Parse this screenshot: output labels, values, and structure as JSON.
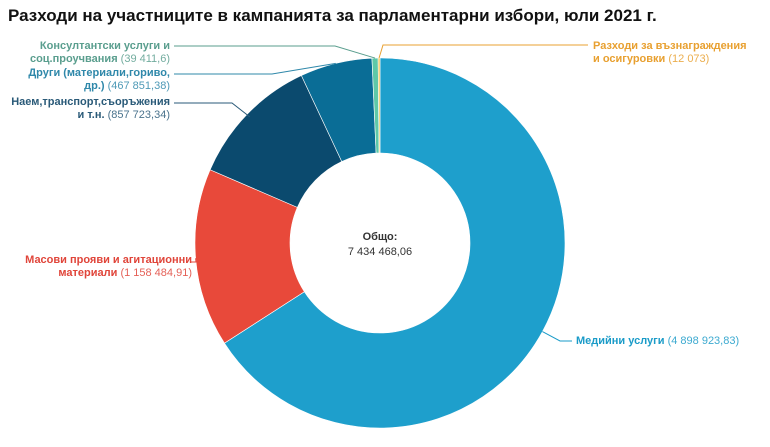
{
  "chart_data": {
    "type": "pie",
    "title": "Разходи на участниците в кампанията за парламентарни избори, юли 2021 г.",
    "center_label": "Общо:",
    "center_value": "7 434 468,06",
    "slices": [
      {
        "name": "Медийни услуги",
        "value": 4898923.83,
        "value_label": "(4 898 923,83)",
        "color": "#1e9fcc",
        "label_color": "#1a9bc8"
      },
      {
        "name": "Масови прояви и агитационни материали",
        "value": 1158484.91,
        "value_label": "(1 158 484,91)",
        "color": "#e8493a",
        "label_color": "#e0453a"
      },
      {
        "name": "Наем,транспорт,съоръжения и т.н.",
        "value": 857723.34,
        "value_label": "(857 723,34)",
        "color": "#0b4a6e",
        "label_color": "#2a5a78"
      },
      {
        "name": "Други (материали,гориво, др.)",
        "value": 467851.38,
        "value_label": "(467 851,38)",
        "color": "#0a6d96",
        "label_color": "#2f88aa"
      },
      {
        "name": "Консултантски услуги и соц.проучвания",
        "value": 39411.6,
        "value_label": "(39 411,6)",
        "color": "#5ec8a8",
        "label_color": "#5a9e8e"
      },
      {
        "name": "Разходи за възнаграждения и осигуровки",
        "value": 12073,
        "value_label": "(12 073)",
        "color": "#f2c250",
        "label_color": "#e8a030"
      }
    ]
  }
}
